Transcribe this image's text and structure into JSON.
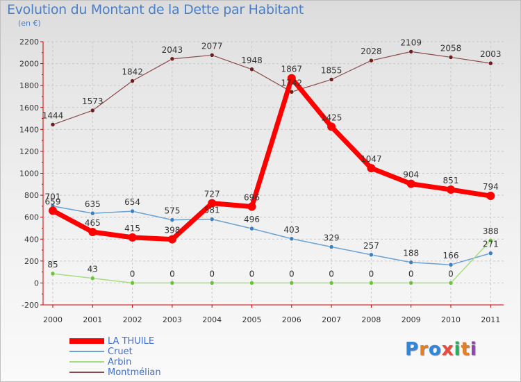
{
  "title": "Evolution du Montant de la Dette par Habitant",
  "unit": "(en €)",
  "logo": {
    "text": "Proxiti",
    "letter_colors": [
      "#2e86de",
      "#e67e22",
      "#2e86de",
      "#e74c3c",
      "#27ae60",
      "#e67e22",
      "#8e44ad"
    ]
  },
  "chart_data": {
    "type": "line",
    "x": [
      "2000",
      "2001",
      "2002",
      "2003",
      "2004",
      "2005",
      "2006",
      "2007",
      "2008",
      "2009",
      "2010",
      "2011"
    ],
    "ylim": [
      -200,
      2200
    ],
    "yticks": [
      -200,
      0,
      200,
      400,
      600,
      800,
      1000,
      1200,
      1400,
      1600,
      1800,
      2000,
      2200
    ],
    "grid": true,
    "legend_position": "bottom-left",
    "series": [
      {
        "name": "LA THUILE",
        "color": "#ff0000",
        "marker": "#ff0000",
        "width": 7,
        "labels": [
          "659",
          "465",
          "415",
          "398",
          "727",
          "696",
          "1867",
          "1425",
          "1047",
          "904",
          "851",
          "794"
        ],
        "values": [
          659,
          465,
          415,
          398,
          727,
          696,
          1867,
          1425,
          1047,
          904,
          851,
          794
        ]
      },
      {
        "name": "Cruet",
        "color": "#6aa2d2",
        "marker": "#3f7fc0",
        "width": 1.5,
        "labels": [
          "701",
          "635",
          "654",
          "575",
          "581",
          "496",
          "403",
          "329",
          "257",
          "188",
          "166",
          "271"
        ],
        "values": [
          701,
          635,
          654,
          575,
          581,
          496,
          403,
          329,
          257,
          188,
          166,
          271
        ]
      },
      {
        "name": "Arbin",
        "color": "#a6de7f",
        "marker": "#6cc43d",
        "width": 1.5,
        "labels": [
          "85",
          "43",
          "0",
          "0",
          "0",
          "0",
          "0",
          "0",
          "0",
          "0",
          "0",
          "388"
        ],
        "values": [
          85,
          43,
          0,
          0,
          0,
          0,
          0,
          0,
          0,
          0,
          0,
          388
        ]
      },
      {
        "name": "Montmélian",
        "color": "#8a4a4a",
        "marker": "#6b1f1f",
        "width": 1.2,
        "labels": [
          "1444",
          "1573",
          "1842",
          "2043",
          "2077",
          "1948",
          "1742",
          "1855",
          "2028",
          "2109",
          "2058",
          "2003"
        ],
        "values": [
          1444,
          1573,
          1842,
          2043,
          2077,
          1948,
          1742,
          1855,
          2028,
          2109,
          2058,
          2003
        ]
      }
    ]
  }
}
